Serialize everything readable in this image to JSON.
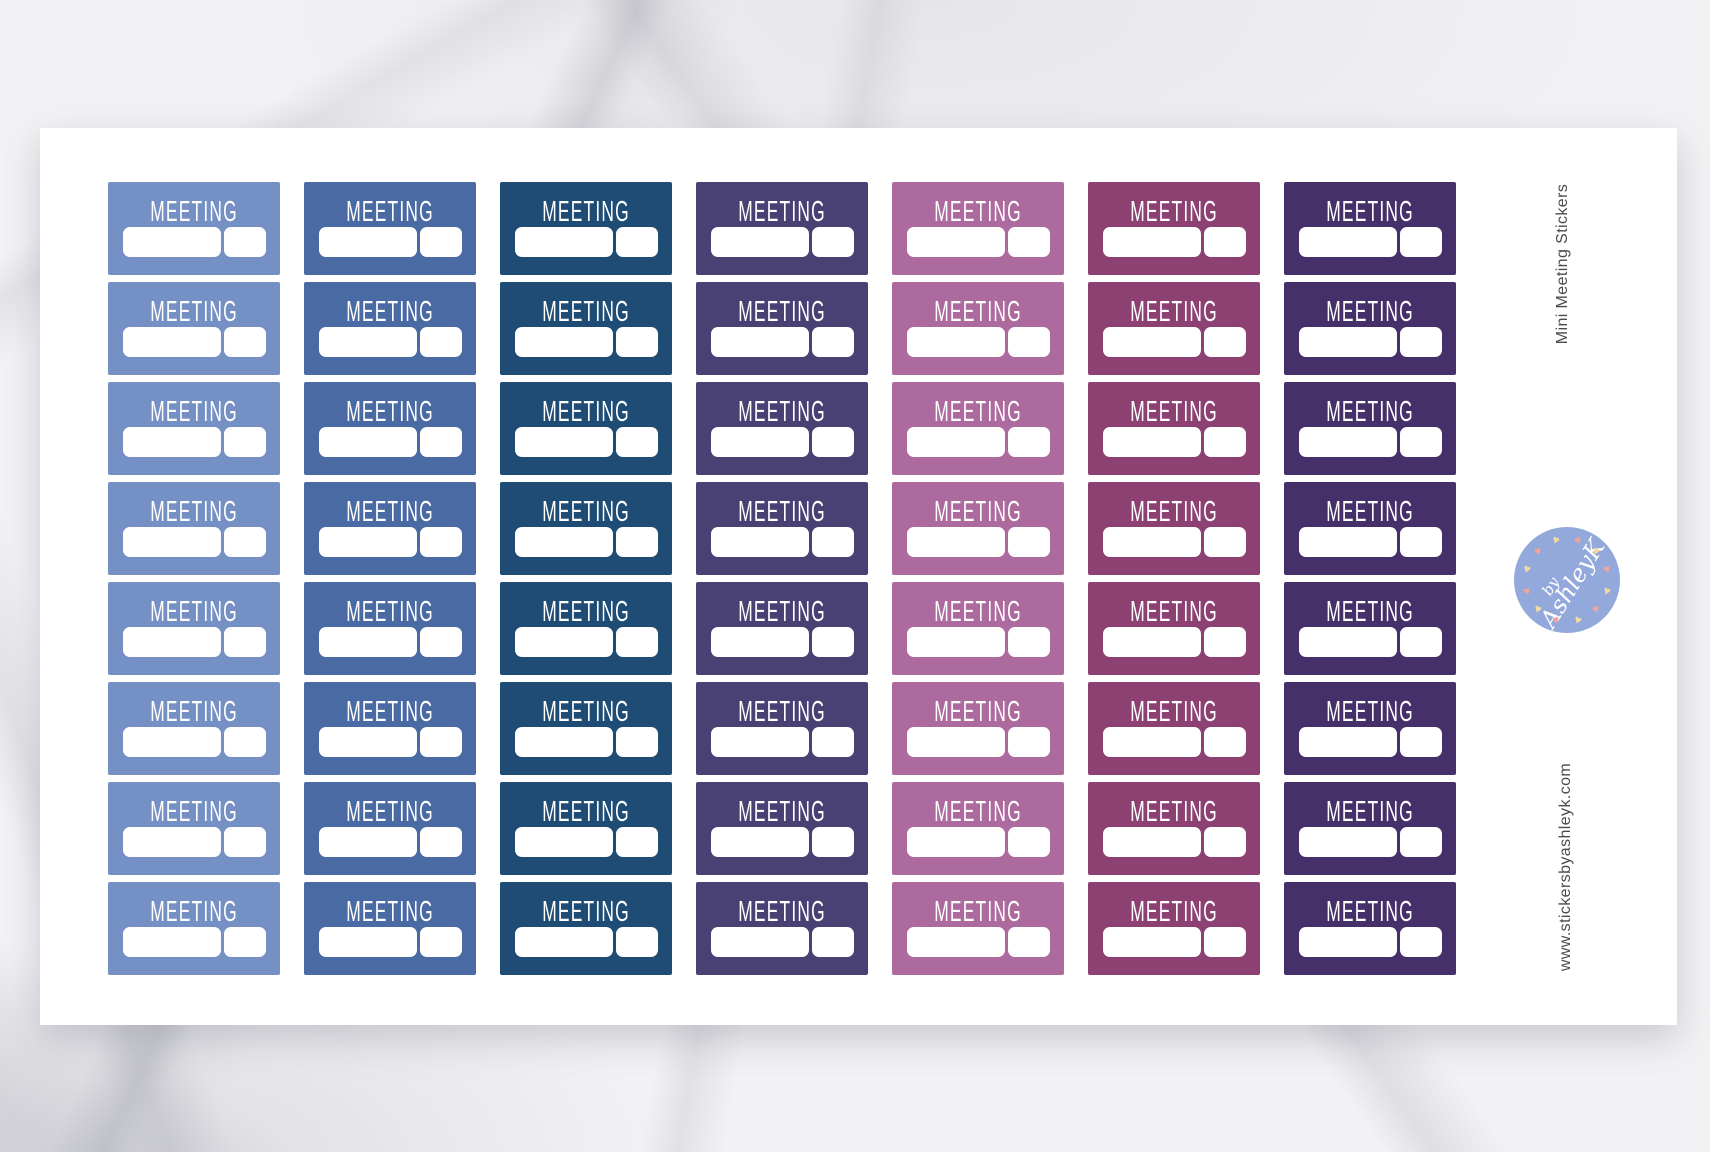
{
  "product": {
    "title": "Mini Meeting Stickers",
    "website": "www.stickersbyashleyk.com"
  },
  "logo": {
    "line1": "by",
    "line2": "AshleyK",
    "circle_color": "#93a8db",
    "heart_glyph": "♥",
    "heart_colors": [
      "#f2a49d",
      "#f5d9a2"
    ]
  },
  "sheet": {
    "sticker_label": "MEETING",
    "rows": 8,
    "columns": [
      {
        "name": "periwinkle",
        "color": "#7590c4"
      },
      {
        "name": "slate-blue",
        "color": "#4a6aa4"
      },
      {
        "name": "navy-teal",
        "color": "#1e4c74"
      },
      {
        "name": "indigo",
        "color": "#494074"
      },
      {
        "name": "orchid",
        "color": "#ad6a9e"
      },
      {
        "name": "plum",
        "color": "#8c4172"
      },
      {
        "name": "eggplant",
        "color": "#46306a"
      }
    ]
  }
}
